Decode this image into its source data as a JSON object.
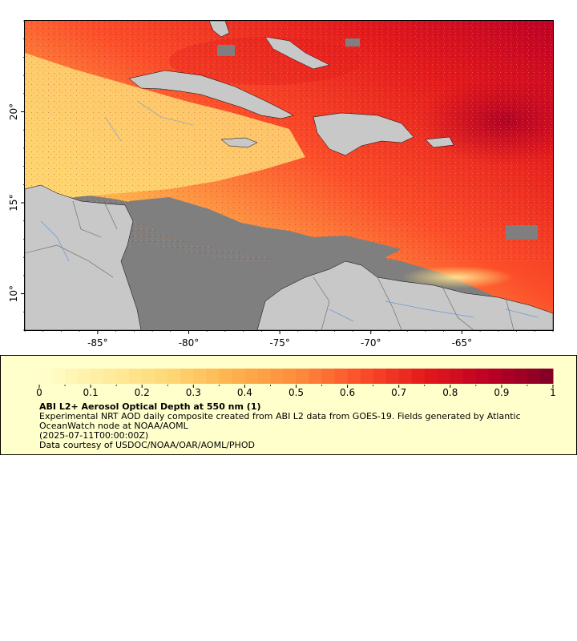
{
  "map": {
    "x_axis_labels": [
      "-85°",
      "-80°",
      "-75°",
      "-70°",
      "-65°"
    ],
    "y_axis_labels": [
      "20°",
      "15°",
      "10°"
    ],
    "x_ticks": [
      -85,
      -80,
      -75,
      -70,
      -65
    ],
    "y_ticks": [
      20,
      15,
      10
    ],
    "lon_range": [
      -89,
      -60
    ],
    "lat_range": [
      8,
      25
    ],
    "colors": {
      "land": "#c8c8c8",
      "no_data": "#7f7f7f",
      "rivers": "#6b9bd2",
      "borders": "#646464",
      "coast": "#000000"
    }
  },
  "legend": {
    "tick_labels": [
      "0",
      "0.1",
      "0.2",
      "0.3",
      "0.4",
      "0.5",
      "0.6",
      "0.7",
      "0.8",
      "0.9",
      "1"
    ],
    "range": [
      0,
      1
    ],
    "title": "ABI L2+ Aerosol Optical Depth at 550 nm (1)",
    "description": "Experimental NRT AOD daily composite created from ABI L2 data from GOES-19. Fields generated by Atlantic OceanWatch node at NOAA/AOML",
    "date": "(2025-07-11T00:00:00Z)",
    "credit": "Data courtesy of USDOC/NOAA/OAR/AOML/PHOD",
    "colors": [
      "#ffffcc",
      "#ffeda0",
      "#fed976",
      "#feb24c",
      "#fd8d3c",
      "#fc4e2a",
      "#e31a1c",
      "#bd0026",
      "#800026"
    ]
  }
}
